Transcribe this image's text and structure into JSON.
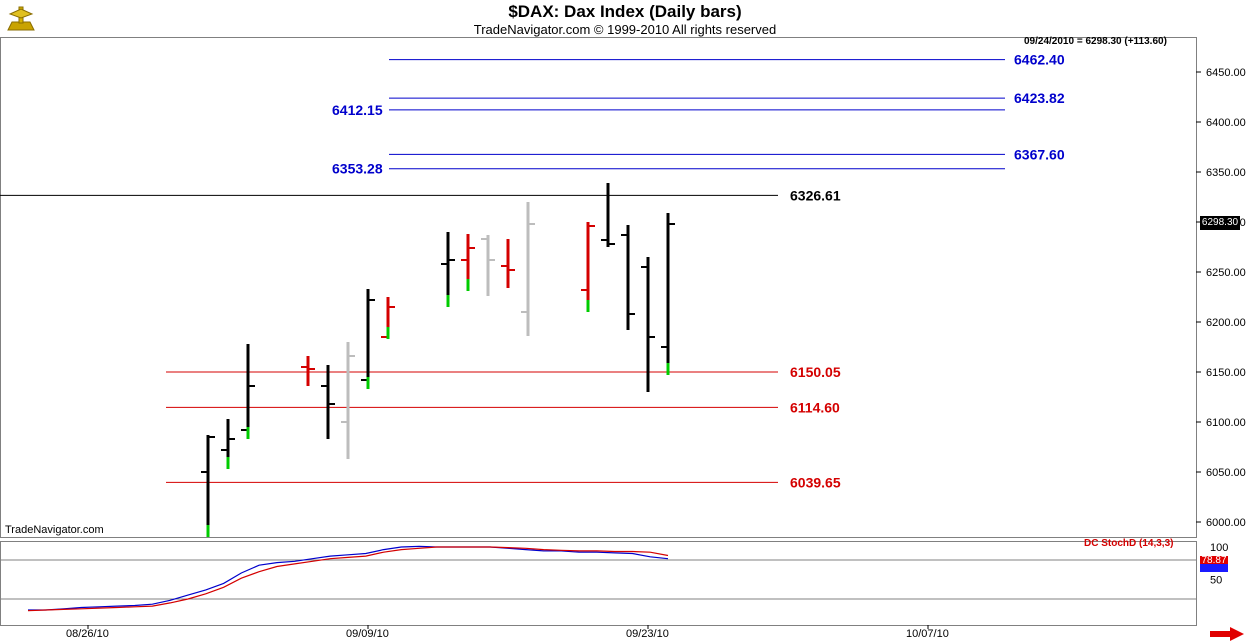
{
  "header": {
    "title": "$DAX:  Dax Index  (Daily bars)",
    "subtitle": "TradeNavigator.com © 1999-2010 All rights reserved",
    "readout": "09/24/2010 = 6298.30 (+113.60)",
    "watermark": "TradeNavigator.com"
  },
  "price_tag": "6298.30",
  "indicator": {
    "label": "DC StochD (14,3,3)",
    "value_tag": "78.87"
  },
  "colors": {
    "blue_levels": "#0000cc",
    "red_levels": "#d40000",
    "black_level": "#000000",
    "up_tick": "#00cc00",
    "gray_bar": "#bdbdbd"
  },
  "icons": {
    "logo": "trade-navigator-logo-icon",
    "nav": "red-right-arrow-icon"
  },
  "chart_data": [
    {
      "type": "ohlc",
      "title": "$DAX:  Dax Index  (Daily bars)",
      "y_ticks": [
        "6000.00",
        "6050.00",
        "6100.00",
        "6150.00",
        "6200.00",
        "6250.00",
        "6300.00",
        "6350.00",
        "6400.00",
        "6450.00"
      ],
      "x_ticks": [
        "08/26/10",
        "09/09/10",
        "09/23/10",
        "10/07/10"
      ],
      "bars": [
        {
          "date": "09/01/10",
          "open": 6050,
          "high": 6087,
          "low": 5985,
          "close": 6085,
          "color": "black"
        },
        {
          "date": "09/02/10",
          "open": 6072,
          "high": 6103,
          "low": 6053,
          "close": 6083,
          "color": "black"
        },
        {
          "date": "09/03/10",
          "open": 6092,
          "high": 6178,
          "low": 6083,
          "close": 6136,
          "color": "black"
        },
        {
          "date": "09/06/10",
          "open": 6155,
          "high": 6166,
          "low": 6136,
          "close": 6153,
          "color": "red"
        },
        {
          "date": "09/07/10",
          "open": 6136,
          "high": 6157,
          "low": 6083,
          "close": 6118,
          "color": "black"
        },
        {
          "date": "09/08/10",
          "open": 6100,
          "high": 6180,
          "low": 6063,
          "close": 6166,
          "color": "gray"
        },
        {
          "date": "09/09/10",
          "open": 6142,
          "high": 6233,
          "low": 6133,
          "close": 6222,
          "color": "black"
        },
        {
          "date": "09/10/10",
          "open": 6185,
          "high": 6225,
          "low": 6183,
          "close": 6215,
          "color": "red"
        },
        {
          "date": "09/13/10",
          "open": 6258,
          "high": 6290,
          "low": 6215,
          "close": 6262,
          "color": "black"
        },
        {
          "date": "09/14/10",
          "open": 6262,
          "high": 6288,
          "low": 6231,
          "close": 6274,
          "color": "red"
        },
        {
          "date": "09/15/10",
          "open": 6283,
          "high": 6287,
          "low": 6226,
          "close": 6262,
          "color": "gray"
        },
        {
          "date": "09/16/10",
          "open": 6256,
          "high": 6283,
          "low": 6234,
          "close": 6252,
          "color": "red"
        },
        {
          "date": "09/17/10",
          "open": 6210,
          "high": 6320,
          "low": 6186,
          "close": 6298,
          "color": "gray"
        },
        {
          "date": "09/20/10",
          "open": 6232,
          "high": 6300,
          "low": 6210,
          "close": 6296,
          "color": "red"
        },
        {
          "date": "09/21/10",
          "open": 6282,
          "high": 6339,
          "low": 6275,
          "close": 6278,
          "color": "black"
        },
        {
          "date": "09/22/10",
          "open": 6287,
          "high": 6297,
          "low": 6192,
          "close": 6208,
          "color": "black"
        },
        {
          "date": "09/23/10",
          "open": 6255,
          "high": 6265,
          "low": 6130,
          "close": 6185,
          "color": "black"
        },
        {
          "date": "09/24/10",
          "open": 6175,
          "high": 6309,
          "low": 6147,
          "close": 6298,
          "color": "black"
        }
      ],
      "levels": [
        {
          "value": 6462.4,
          "label": "6462.40",
          "color": "blue",
          "label_side": "right"
        },
        {
          "value": 6423.82,
          "label": "6423.82",
          "color": "blue",
          "label_side": "right"
        },
        {
          "value": 6412.15,
          "label": "6412.15",
          "color": "blue",
          "label_side": "left"
        },
        {
          "value": 6367.6,
          "label": "6367.60",
          "color": "blue",
          "label_side": "right"
        },
        {
          "value": 6353.28,
          "label": "6353.28",
          "color": "blue",
          "label_side": "left"
        },
        {
          "value": 6326.61,
          "label": "6326.61",
          "color": "black",
          "label_side": "right"
        },
        {
          "value": 6150.05,
          "label": "6150.05",
          "color": "red",
          "label_side": "right"
        },
        {
          "value": 6114.6,
          "label": "6114.60",
          "color": "red",
          "label_side": "right"
        },
        {
          "value": 6039.65,
          "label": "6039.65",
          "color": "red",
          "label_side": "right"
        }
      ],
      "grid": false
    },
    {
      "type": "line",
      "title": "DC StochD (14,3,3)",
      "y_ticks": [
        "50",
        "100"
      ],
      "reference_levels": [
        80,
        20
      ],
      "series": [
        {
          "color": "blue",
          "values": [
            3,
            3,
            5,
            7,
            8,
            9,
            10,
            12,
            18,
            26,
            34,
            44,
            60,
            72,
            76,
            78,
            82,
            86,
            88,
            90,
            96,
            100,
            101,
            100,
            100,
            100,
            100,
            98,
            96,
            94,
            94,
            92,
            92,
            91,
            90,
            85,
            82
          ]
        },
        {
          "color": "red",
          "values": [
            2,
            3,
            4,
            5,
            6,
            7,
            8,
            9,
            14,
            20,
            28,
            38,
            52,
            62,
            70,
            74,
            78,
            82,
            84,
            86,
            92,
            96,
            98,
            100,
            100,
            100,
            100,
            99,
            98,
            96,
            95,
            94,
            94,
            93,
            93,
            92,
            87
          ]
        }
      ]
    }
  ]
}
